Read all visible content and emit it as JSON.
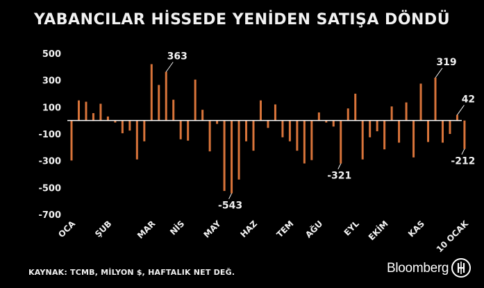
{
  "title": "YABANCILAR HİSSEDE YENİDEN SATIŞA DÖNDÜ",
  "source": "KAYNAK: TCMB, MİLYON $, HAFTALIK NET DEĞ.",
  "brand": "Bloomberg",
  "logo_text": "HT",
  "colors": {
    "background": "#000000",
    "bar": "#d9743a",
    "text": "#f2f2f2"
  },
  "chart_data": {
    "type": "bar",
    "title": "YABANCILAR HİSSEDE YENİDEN SATIŞA DÖNDÜ",
    "ylim": [
      -700,
      500
    ],
    "yticks": [
      500,
      300,
      100,
      -100,
      -300,
      -500,
      -700
    ],
    "grid": false,
    "values": [
      -298,
      150,
      140,
      55,
      125,
      30,
      -15,
      -95,
      -75,
      -290,
      -155,
      420,
      265,
      363,
      155,
      -140,
      -150,
      305,
      80,
      -230,
      -25,
      -525,
      -543,
      -440,
      -155,
      -225,
      150,
      -55,
      120,
      -125,
      -155,
      -225,
      -320,
      -295,
      60,
      -15,
      -45,
      -321,
      90,
      200,
      -290,
      -125,
      -80,
      -215,
      105,
      -165,
      135,
      -275,
      275,
      -160,
      319,
      -165,
      -100,
      42,
      -212
    ],
    "x_labels": [
      {
        "label": "OCA",
        "index": 0
      },
      {
        "label": "ŞUB",
        "index": 5
      },
      {
        "label": "MAR",
        "index": 11
      },
      {
        "label": "NİS",
        "index": 15
      },
      {
        "label": "MAY",
        "index": 20
      },
      {
        "label": "HAZ",
        "index": 25
      },
      {
        "label": "TEM",
        "index": 30
      },
      {
        "label": "AĞU",
        "index": 34
      },
      {
        "label": "EYL",
        "index": 39
      },
      {
        "label": "EKİM",
        "index": 43
      },
      {
        "label": "KAS",
        "index": 48
      },
      {
        "label": "10 OCAK",
        "index": 54
      }
    ],
    "annotations": [
      {
        "text": "363",
        "index": 13
      },
      {
        "text": "-543",
        "index": 22
      },
      {
        "text": "-321",
        "index": 37
      },
      {
        "text": "319",
        "index": 50
      },
      {
        "text": "42",
        "index": 53
      },
      {
        "text": "-212",
        "index": 54
      }
    ]
  }
}
